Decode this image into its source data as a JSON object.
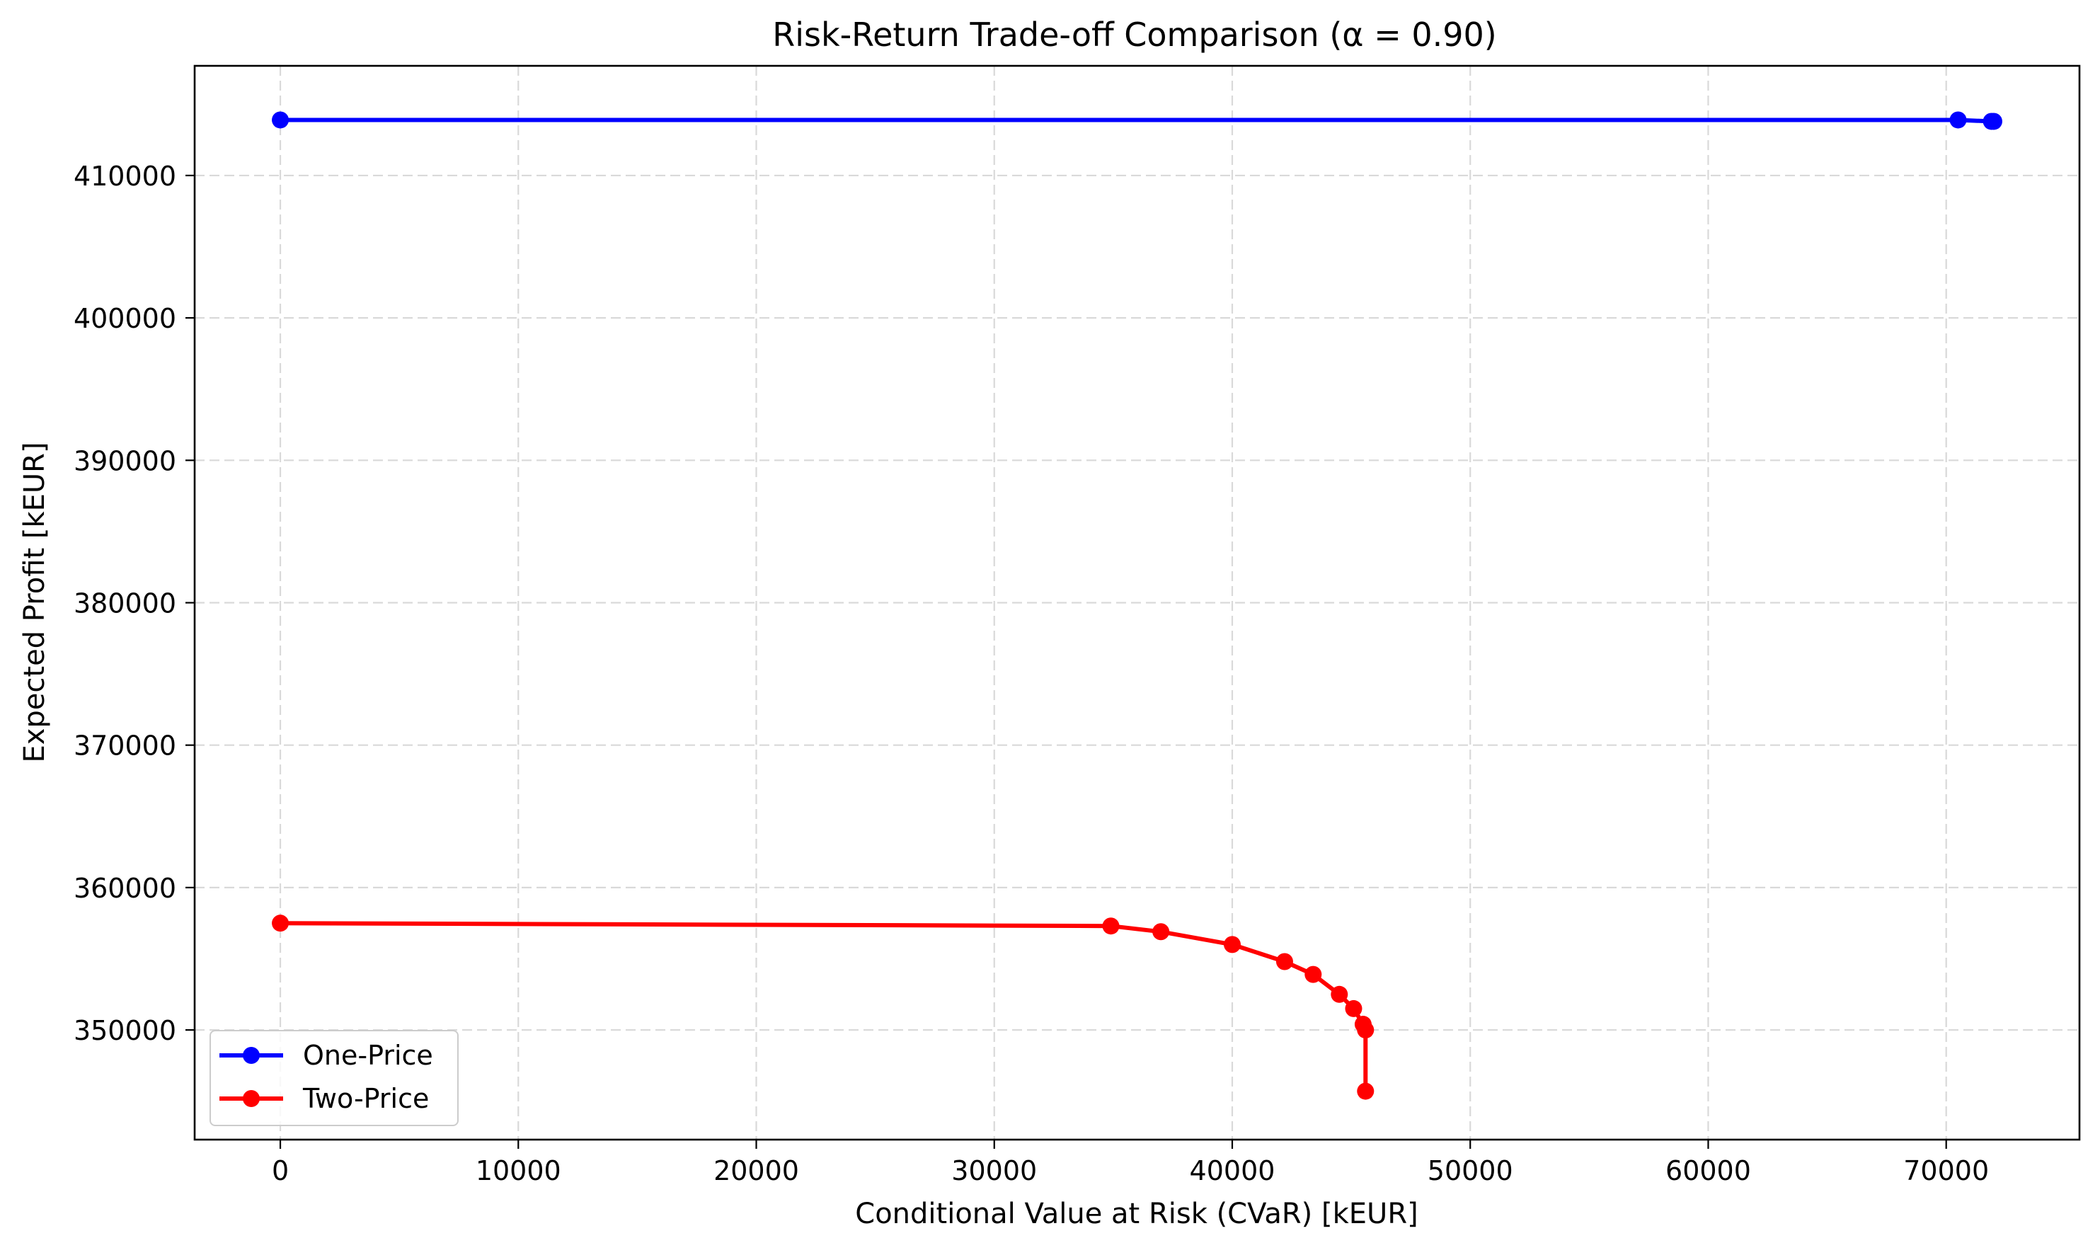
{
  "chart_data": {
    "type": "line",
    "title": "Risk-Return Trade-off Comparison (α = 0.90)",
    "xlabel": "Conditional Value at Risk (CVaR) [kEUR]",
    "ylabel": "Expected Profit [kEUR]",
    "xlim": [
      -3600,
      75600
    ],
    "ylim": [
      342300,
      417700
    ],
    "xticks": [
      0,
      10000,
      20000,
      30000,
      40000,
      50000,
      60000,
      70000
    ],
    "yticks": [
      350000,
      360000,
      370000,
      380000,
      390000,
      400000,
      410000
    ],
    "xtick_labels": [
      "0",
      "10000",
      "20000",
      "30000",
      "40000",
      "50000",
      "60000",
      "70000"
    ],
    "ytick_labels": [
      "350000",
      "360000",
      "370000",
      "380000",
      "390000",
      "400000",
      "410000"
    ],
    "grid": true,
    "legend_position": "lower-left",
    "series": [
      {
        "name": "One-Price",
        "color": "#0000ff",
        "marker": "circle",
        "x": [
          0,
          70500,
          71900,
          72000
        ],
        "y": [
          413900,
          413900,
          413800,
          413800
        ]
      },
      {
        "name": "Two-Price",
        "color": "#ff0000",
        "marker": "circle",
        "x": [
          0,
          34900,
          37000,
          40000,
          42200,
          43400,
          44500,
          45100,
          45500,
          45600,
          45600
        ],
        "y": [
          357500,
          357300,
          356900,
          356000,
          354800,
          353900,
          352500,
          351500,
          350400,
          350000,
          345700
        ]
      }
    ]
  }
}
